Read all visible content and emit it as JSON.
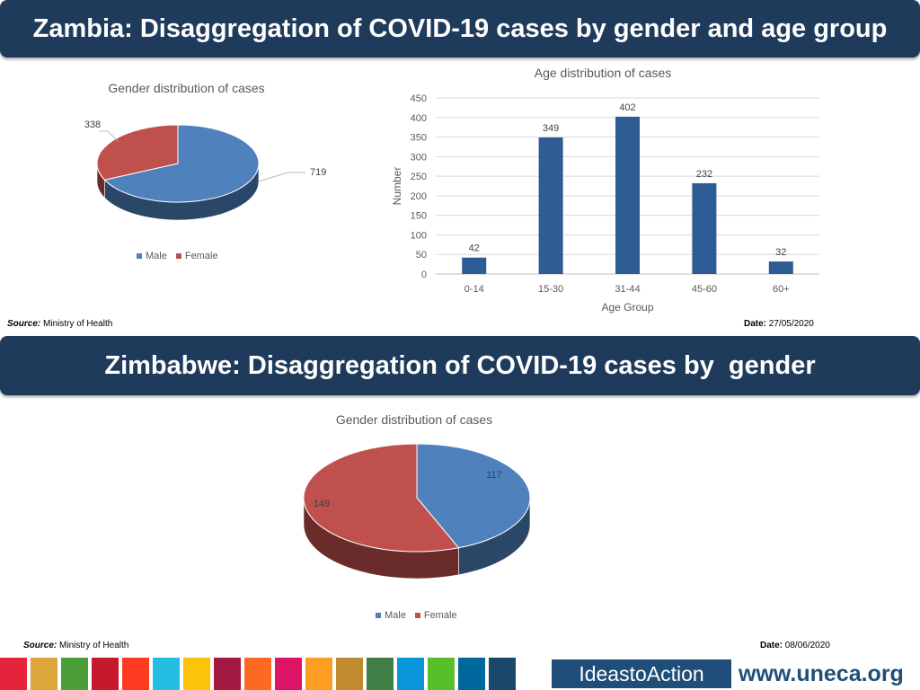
{
  "zambia": {
    "banner_title": "Zambia: Disaggregation of COVID-19 cases by gender and age group",
    "source_label": "Source",
    "source_value": "Ministry of Health",
    "date_label": "Date:",
    "date_value": "27/05/2020"
  },
  "zimbabwe": {
    "banner_title": "Zimbabwe: Disaggregation of COVID-19 cases by  gender",
    "source_label": "Source",
    "source_value": "Ministry of Health",
    "date_label": "Date:",
    "date_value": "08/06/2020"
  },
  "chart_data": [
    {
      "type": "pie",
      "title": "Gender distribution of cases",
      "categories": [
        "Male",
        "Female"
      ],
      "values": [
        719,
        338
      ],
      "colors": [
        "#4f81bd",
        "#c0504d"
      ],
      "legend": "bottom"
    },
    {
      "type": "bar",
      "title": "Age distribution of cases",
      "xlabel": "Age Group",
      "ylabel": "Number",
      "categories": [
        "0-14",
        "15-30",
        "31-44",
        "45-60",
        "60+"
      ],
      "values": [
        42,
        349,
        402,
        232,
        32
      ],
      "ylim": [
        0,
        450
      ],
      "yticks": [
        0,
        50,
        100,
        150,
        200,
        250,
        300,
        350,
        400,
        450
      ],
      "grid": true,
      "color": "#2e5c94"
    },
    {
      "type": "pie",
      "title": "Gender distribution of cases",
      "categories": [
        "Male",
        "Female"
      ],
      "values": [
        117,
        149
      ],
      "colors": [
        "#4f81bd",
        "#c0504d"
      ],
      "legend": "bottom"
    }
  ],
  "footer": {
    "ideas_text": "IdeastoAction",
    "site_text": "www.uneca.org",
    "stripe_colors": [
      "#e5243b",
      "#dda63a",
      "#4c9f38",
      "#c5192d",
      "#ff3a21",
      "#26bde2",
      "#fcc30b",
      "#a21942",
      "#fd6925",
      "#dd1367",
      "#fd9d24",
      "#bf8b2e",
      "#3f7e44",
      "#0a97d9",
      "#56c02b",
      "#00689d",
      "#19486a"
    ]
  }
}
